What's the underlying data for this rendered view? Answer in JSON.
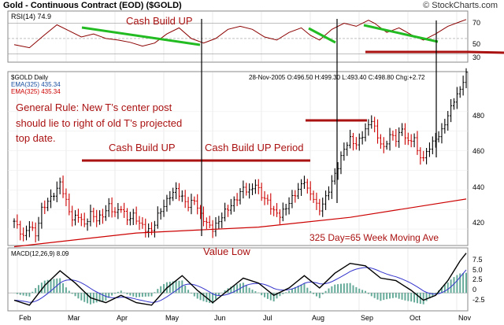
{
  "header": {
    "title": "Gold - Continuous Contract (EOD) ($GOLD)",
    "copyright": "© StockCharts.com"
  },
  "rsi_panel": {
    "label": "RSI(14) 74.9",
    "ticks": [
      "70",
      "50",
      "30"
    ],
    "annotation": "Cash Build UP"
  },
  "price_panel": {
    "symbol_label": "$GOLD Daily",
    "ema_label_1": "EMA(325) 435.34",
    "ema_label_2": "EMA(325) 435.34",
    "ohlc_text": "28-Nov-2005  O:496.50  H:499.30  L:493.40  C:498.80  Chg:+2.72",
    "ticks": [
      "480",
      "460",
      "440",
      "420"
    ],
    "annotations": {
      "rule_line1": "General Rule: New T’s center post",
      "rule_line2": "should lie to right of old T’s projected",
      "rule_line3": "top date.",
      "cash_build_up": "Cash Build UP",
      "cash_build_up_period": "Cash Build UP Period",
      "value_low": "Value Low",
      "moving_avg": "325 Day=65 Week Moving Ave"
    }
  },
  "macd_panel": {
    "label": "MACD(12,26,9) 8.09",
    "ticks": [
      "7.5",
      "5.0",
      "2.5",
      "0",
      "-2.5"
    ]
  },
  "x_axis": {
    "months": [
      "Feb",
      "Mar",
      "Apr",
      "May",
      "Jun",
      "Jul",
      "Aug",
      "Sep",
      "Oct",
      "Nov"
    ]
  },
  "colors": {
    "price_up": "#000000",
    "price_down": "#cc0000",
    "ema": "#cc0000",
    "green_line": "#22bb22",
    "annotation_red": "#aa1111",
    "rsi_line": "#8b0000",
    "macd_line": "#000000",
    "signal_line": "#3333cc",
    "histogram": "#66aa99"
  },
  "chart_data": {
    "type": "ohlc",
    "title": "Gold - Continuous Contract (EOD) ($GOLD)",
    "x_range": [
      "2005-02-01",
      "2005-11-30"
    ],
    "x_ticks": [
      "Feb",
      "Mar",
      "Apr",
      "May",
      "Jun",
      "Jul",
      "Aug",
      "Sep",
      "Oct",
      "Nov"
    ],
    "price_ylim": [
      412,
      500
    ],
    "price_path": [
      [
        0,
        424
      ],
      [
        3,
        416
      ],
      [
        5,
        422
      ],
      [
        7,
        417
      ],
      [
        9,
        430
      ],
      [
        12,
        436
      ],
      [
        14,
        440
      ],
      [
        15,
        444
      ],
      [
        17,
        434
      ],
      [
        19,
        425
      ],
      [
        21,
        427
      ],
      [
        23,
        422
      ],
      [
        25,
        428
      ],
      [
        27,
        425
      ],
      [
        29,
        427
      ],
      [
        31,
        432
      ],
      [
        33,
        428
      ],
      [
        35,
        431
      ],
      [
        37,
        425
      ],
      [
        39,
        427
      ],
      [
        41,
        423
      ],
      [
        43,
        420
      ],
      [
        45,
        419
      ],
      [
        47,
        427
      ],
      [
        49,
        432
      ],
      [
        51,
        437
      ],
      [
        53,
        440
      ],
      [
        55,
        436
      ],
      [
        57,
        432
      ],
      [
        59,
        435
      ],
      [
        61,
        427
      ],
      [
        63,
        423
      ],
      [
        65,
        420
      ],
      [
        67,
        424
      ],
      [
        69,
        429
      ],
      [
        71,
        432
      ],
      [
        73,
        436
      ],
      [
        75,
        441
      ],
      [
        77,
        439
      ],
      [
        79,
        443
      ],
      [
        81,
        437
      ],
      [
        83,
        434
      ],
      [
        85,
        429
      ],
      [
        87,
        427
      ],
      [
        89,
        431
      ],
      [
        91,
        436
      ],
      [
        93,
        440
      ],
      [
        95,
        445
      ],
      [
        96,
        440
      ],
      [
        98,
        436
      ],
      [
        99,
        432
      ],
      [
        100,
        430
      ],
      [
        102,
        436
      ],
      [
        104,
        444
      ],
      [
        106,
        452
      ],
      [
        108,
        461
      ],
      [
        110,
        466
      ],
      [
        112,
        463
      ],
      [
        114,
        468
      ],
      [
        116,
        473
      ],
      [
        117,
        476
      ],
      [
        119,
        467
      ],
      [
        121,
        461
      ],
      [
        123,
        468
      ],
      [
        125,
        466
      ],
      [
        127,
        471
      ],
      [
        129,
        464
      ],
      [
        131,
        467
      ],
      [
        132,
        459
      ],
      [
        134,
        456
      ],
      [
        136,
        462
      ],
      [
        138,
        466
      ],
      [
        140,
        470
      ],
      [
        142,
        478
      ],
      [
        144,
        486
      ],
      [
        146,
        491
      ],
      [
        147,
        496
      ],
      [
        148,
        499
      ]
    ],
    "ema325": [
      [
        0,
        411
      ],
      [
        40,
        418
      ],
      [
        80,
        421
      ],
      [
        110,
        426
      ],
      [
        148,
        435.34
      ]
    ],
    "rsi": [
      [
        0,
        42
      ],
      [
        5,
        38
      ],
      [
        10,
        55
      ],
      [
        14,
        68
      ],
      [
        18,
        60
      ],
      [
        22,
        52
      ],
      [
        26,
        56
      ],
      [
        30,
        50
      ],
      [
        34,
        48
      ],
      [
        38,
        45
      ],
      [
        42,
        40
      ],
      [
        46,
        44
      ],
      [
        50,
        56
      ],
      [
        54,
        64
      ],
      [
        58,
        50
      ],
      [
        62,
        44
      ],
      [
        66,
        50
      ],
      [
        70,
        62
      ],
      [
        74,
        66
      ],
      [
        78,
        62
      ],
      [
        82,
        52
      ],
      [
        86,
        48
      ],
      [
        90,
        58
      ],
      [
        94,
        64
      ],
      [
        97,
        54
      ],
      [
        100,
        48
      ],
      [
        104,
        62
      ],
      [
        108,
        70
      ],
      [
        112,
        66
      ],
      [
        116,
        74
      ],
      [
        118,
        70
      ],
      [
        122,
        58
      ],
      [
        126,
        64
      ],
      [
        130,
        55
      ],
      [
        134,
        48
      ],
      [
        138,
        56
      ],
      [
        142,
        66
      ],
      [
        146,
        72
      ],
      [
        148,
        74.9
      ]
    ],
    "rsi_ylim": [
      20,
      85
    ],
    "macd": [
      [
        0,
        -1.5
      ],
      [
        5,
        -2.5
      ],
      [
        10,
        1.5
      ],
      [
        15,
        4.5
      ],
      [
        20,
        2.0
      ],
      [
        25,
        -1.0
      ],
      [
        30,
        -2.0
      ],
      [
        35,
        -0.5
      ],
      [
        40,
        -2.0
      ],
      [
        45,
        -2.5
      ],
      [
        50,
        1.0
      ],
      [
        55,
        3.5
      ],
      [
        60,
        0.5
      ],
      [
        65,
        -2.0
      ],
      [
        70,
        0.5
      ],
      [
        75,
        3.0
      ],
      [
        80,
        2.0
      ],
      [
        85,
        -0.5
      ],
      [
        90,
        1.0
      ],
      [
        95,
        3.5
      ],
      [
        100,
        1.0
      ],
      [
        105,
        4.0
      ],
      [
        110,
        6.0
      ],
      [
        115,
        5.5
      ],
      [
        120,
        3.0
      ],
      [
        125,
        2.5
      ],
      [
        130,
        0.5
      ],
      [
        134,
        -1.5
      ],
      [
        138,
        -0.5
      ],
      [
        142,
        2.5
      ],
      [
        146,
        6.5
      ],
      [
        148,
        8.09
      ]
    ],
    "macd_ylim": [
      -3.5,
      9
    ]
  }
}
